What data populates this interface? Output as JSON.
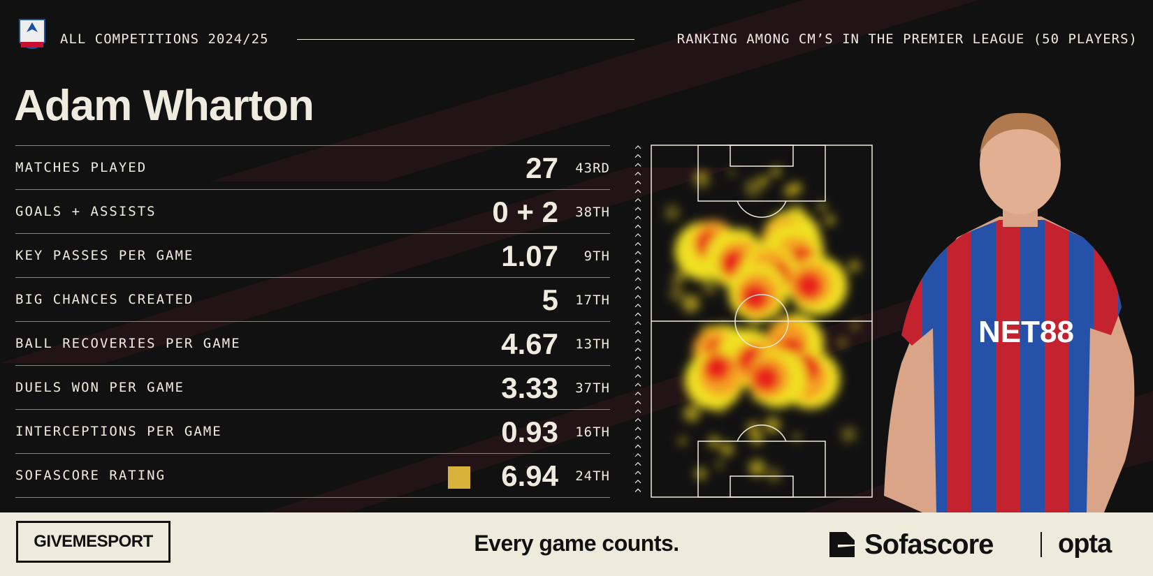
{
  "header": {
    "competition": "ALL COMPETITIONS 2024/25",
    "ranking_note": "RANKING AMONG CM’S IN THE PREMIER LEAGUE (50 PLAYERS)"
  },
  "player": {
    "name": "Adam Wharton"
  },
  "stats": [
    {
      "label": "MATCHES PLAYED",
      "value": "27",
      "rank": "43RD"
    },
    {
      "label": "GOALS + ASSISTS",
      "value": "0 + 2",
      "rank": "38TH"
    },
    {
      "label": "KEY PASSES PER GAME",
      "value": "1.07",
      "rank": "9TH"
    },
    {
      "label": "BIG CHANCES CREATED",
      "value": "5",
      "rank": "17TH"
    },
    {
      "label": "BALL RECOVERIES PER GAME",
      "value": "4.67",
      "rank": "13TH"
    },
    {
      "label": "DUELS WON PER GAME",
      "value": "3.33",
      "rank": "37TH"
    },
    {
      "label": "INTERCEPTIONS PER GAME",
      "value": "0.93",
      "rank": "16TH"
    },
    {
      "label": "SOFASCORE RATING",
      "value": "6.94",
      "rank": "24TH"
    }
  ],
  "footer": {
    "brand": "GIVEMESPORT",
    "tagline": "Every game counts.",
    "partner": "Sofascore",
    "partner2": "opta"
  }
}
